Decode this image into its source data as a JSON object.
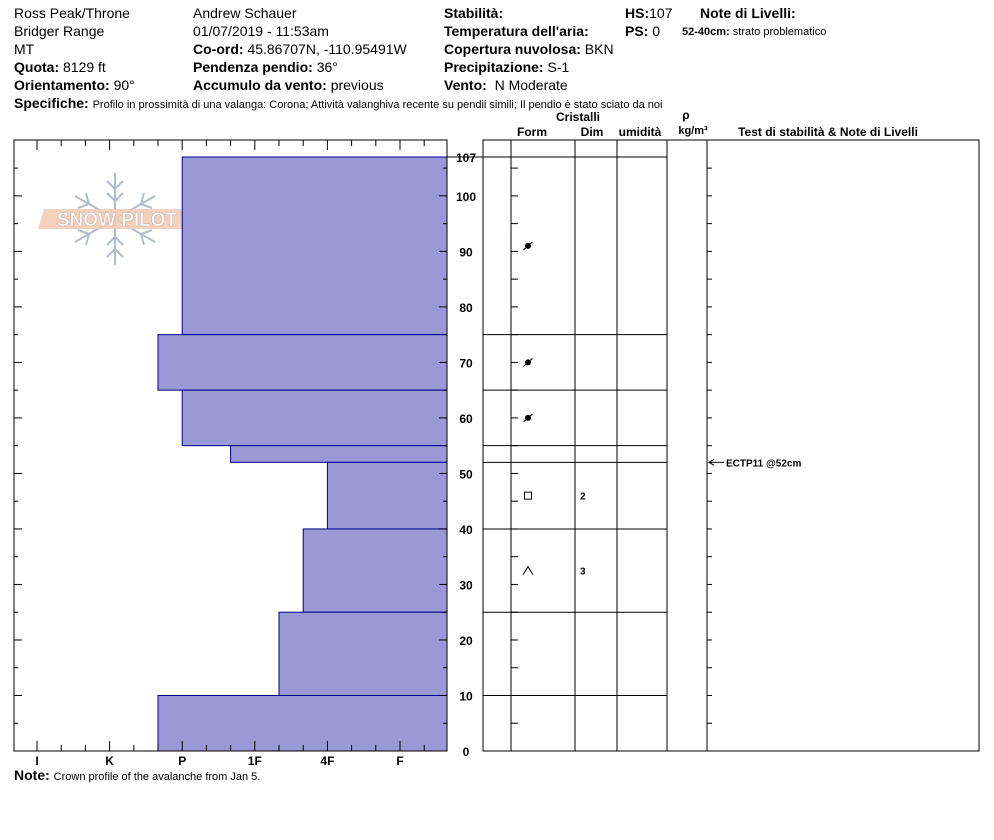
{
  "header": {
    "location": "Ross Peak/Throne",
    "range": "Bridger Range",
    "state": "MT",
    "elevation_label": "Quota:",
    "elevation": "8129 ft",
    "aspect_label": "Orientamento:",
    "aspect": "90°",
    "observer": "Andrew Schauer",
    "datetime": "01/07/2019 - 11:53am",
    "coord_label": "Co-ord:",
    "coord": "45.86707N, -110.95491W",
    "slope_label": "Pendenza pendio:",
    "slope": "36°",
    "wind_loading_label": "Accumulo da vento:",
    "wind_loading": "previous",
    "stability_label": "Stabilità:",
    "air_temp_label": "Temperatura dell'aria:",
    "cloud_label": "Copertura nuvolosa:",
    "cloud": "BKN",
    "precip_label": "Precipitazione:",
    "precip": "S-1",
    "wind_label": "Vento:",
    "wind": "N Moderate",
    "hs_label": "HS:",
    "hs": "107",
    "ps_label": "PS:",
    "ps": "0",
    "layer_notes_label": "Note di Livelli:",
    "layer_note_depth": "52-40cm:",
    "layer_note_text": "strato problematico",
    "specifics_label": "Specifiche:",
    "specifics": "Profilo in prossimità di una valanga: Corona;  Attività valanghiva recente su pendii simili;  Il pendio è stato sciato da noi"
  },
  "logo_text": "SNOW PILOT",
  "columns": {
    "crystals": "Cristalli",
    "form": "Form",
    "dim": "Dim",
    "humidity": "umidità",
    "rho": "ρ",
    "density_unit": "kg/m³",
    "stability_notes": "Test di stabilità & Note di Livelli"
  },
  "footer": {
    "note_label": "Note:",
    "note": "Crown profile of the avalanche from Jan 5."
  },
  "colors": {
    "hardness_fill": "#9999d6",
    "hardness_stroke": "#00008b"
  },
  "chart_data": {
    "type": "bar",
    "orientation": "horizontal",
    "x_categories": [
      "I",
      "K",
      "P",
      "1F",
      "4F",
      "F"
    ],
    "y_ticks": [
      0,
      10,
      20,
      30,
      40,
      50,
      60,
      70,
      80,
      90,
      100,
      107
    ],
    "ylim": [
      0,
      107
    ],
    "hardness_layers": [
      {
        "top": 107,
        "bottom": 75,
        "hardness": "P"
      },
      {
        "top": 75,
        "bottom": 65,
        "hardness": "P-"
      },
      {
        "top": 65,
        "bottom": 55,
        "hardness": "P"
      },
      {
        "top": 55,
        "bottom": 52,
        "hardness": "1F-"
      },
      {
        "top": 52,
        "bottom": 40,
        "hardness": "4F"
      },
      {
        "top": 40,
        "bottom": 25,
        "hardness": "4F-"
      },
      {
        "top": 25,
        "bottom": 10,
        "hardness": "1F+"
      },
      {
        "top": 10,
        "bottom": 0,
        "hardness": "P-"
      }
    ],
    "layer_boundaries": [
      107,
      75,
      65,
      55,
      52,
      40,
      25,
      10,
      0
    ],
    "crystals": [
      {
        "depth": 91,
        "form": "rounded",
        "size": ""
      },
      {
        "depth": 70,
        "form": "rounded",
        "size": ""
      },
      {
        "depth": 60,
        "form": "rounded",
        "size": ""
      },
      {
        "depth": 46,
        "form": "faceted",
        "size": "2"
      },
      {
        "depth": 32.5,
        "form": "depth-hoar",
        "size": "3"
      }
    ],
    "tests": [
      {
        "depth": 52,
        "label": "ECTP11 @52cm"
      }
    ]
  }
}
